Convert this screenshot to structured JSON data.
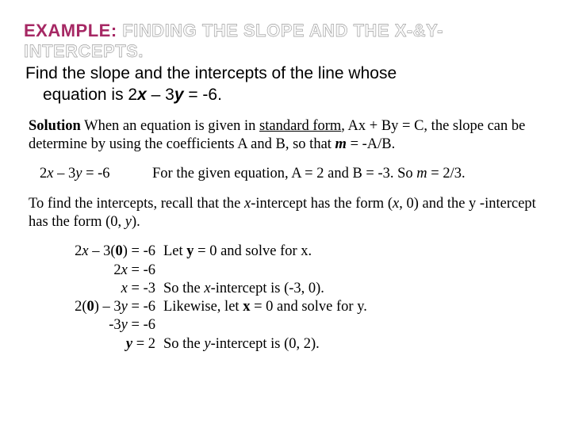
{
  "title": {
    "example_label": "EXAMPLE:",
    "outline_text": "FINDING THE SLOPE AND THE X-&Y-INTERCEPTS.",
    "label_color": "#a62864",
    "outline_stroke": "#808080",
    "fontsize_pt": 22
  },
  "problem": {
    "line1": "Find the slope and the intercepts of the line whose",
    "line2_pre": "equation is 2",
    "line2_x": "x",
    "line2_mid": " – 3",
    "line2_y": "y",
    "line2_post": " = -6.",
    "fontsize_pt": 21
  },
  "solution_intro": {
    "label": "Solution",
    "text1": "   When an equation is given in ",
    "underline": "standard form",
    "text2": ", Ax + By = C, the slope can be determine by using the coefficients A and B, so that ",
    "m": "m",
    "text3": " = -A/B."
  },
  "given": {
    "eqn_pre": "2",
    "eqn_x": "x",
    "eqn_mid": " – 3",
    "eqn_y": "y",
    "eqn_post": " = -6",
    "expl_pre": "For the given equation, A = 2 and B = -3.  So ",
    "expl_m": "m",
    "expl_post": " = 2/3."
  },
  "intercepts_note": {
    "pre": "To find the intercepts, recall that the ",
    "xint": "x",
    "mid1": "-intercept has the form (",
    "xvar": "x",
    "mid2": ", 0) and the y -intercept has the form (0, ",
    "yvar": "y",
    "post": ")."
  },
  "steps": [
    {
      "eq_html": "2<i>x</i> – 3(<b>0</b>) = -6",
      "exp_html": "Let <b>y</b> = 0 and solve for x."
    },
    {
      "eq_html": "2<i>x</i> = -6",
      "exp_html": ""
    },
    {
      "eq_html": "<i>x</i> = -3",
      "exp_html": "So the <i>x</i>-intercept is (-3, 0)."
    },
    {
      "eq_html": "2(<b>0</b>) – 3<i>y</i> = -6",
      "exp_html": "Likewise, let <b>x</b> = 0 and solve for y."
    },
    {
      "eq_html": "-3<i>y</i> = -6",
      "exp_html": ""
    },
    {
      "eq_html": "<i><b>y</b></i> = 2",
      "exp_html": "So the <i>y</i>-intercept is (0, 2)."
    }
  ],
  "colors": {
    "background": "#ffffff",
    "text": "#000000"
  },
  "body_fontsize_pt": 18.5
}
